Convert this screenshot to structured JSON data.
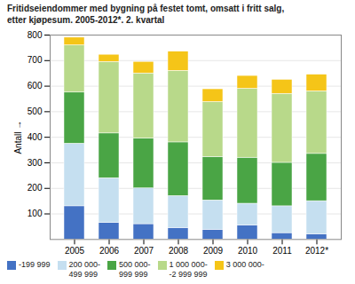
{
  "chart_data": {
    "type": "bar",
    "stacked": true,
    "title": "Fritidseiendommer med bygning på festet tomt, omsatt i fritt salg,\netter kjøpesum. 2005-2012*. 2. kvartal",
    "ylabel": "Antall",
    "categories": [
      "2005",
      "2006",
      "2007",
      "2008",
      "2009",
      "2010",
      "2011",
      "2012*"
    ],
    "series": [
      {
        "name": "-199 999",
        "color": "#4472c4",
        "values": [
          130,
          65,
          60,
          45,
          38,
          55,
          25,
          20
        ]
      },
      {
        "name": "200 000-\n499 999",
        "color": "#c5dff0",
        "values": [
          245,
          175,
          140,
          125,
          115,
          85,
          105,
          130
        ]
      },
      {
        "name": "500 000-\n999 999",
        "color": "#4aa545",
        "values": [
          200,
          175,
          195,
          210,
          170,
          180,
          170,
          185
        ]
      },
      {
        "name": "1 000 000-\n-2 999 999",
        "color": "#b8d98a",
        "values": [
          185,
          280,
          255,
          280,
          215,
          270,
          270,
          245
        ]
      },
      {
        "name": "3 000 000-",
        "color": "#f5c518",
        "values": [
          30,
          28,
          45,
          75,
          50,
          50,
          55,
          65
        ]
      }
    ],
    "ylim": [
      0,
      800
    ],
    "yticks": [
      100,
      200,
      300,
      400,
      500,
      600,
      700,
      800
    ],
    "grid": true,
    "legend": "bottom"
  }
}
